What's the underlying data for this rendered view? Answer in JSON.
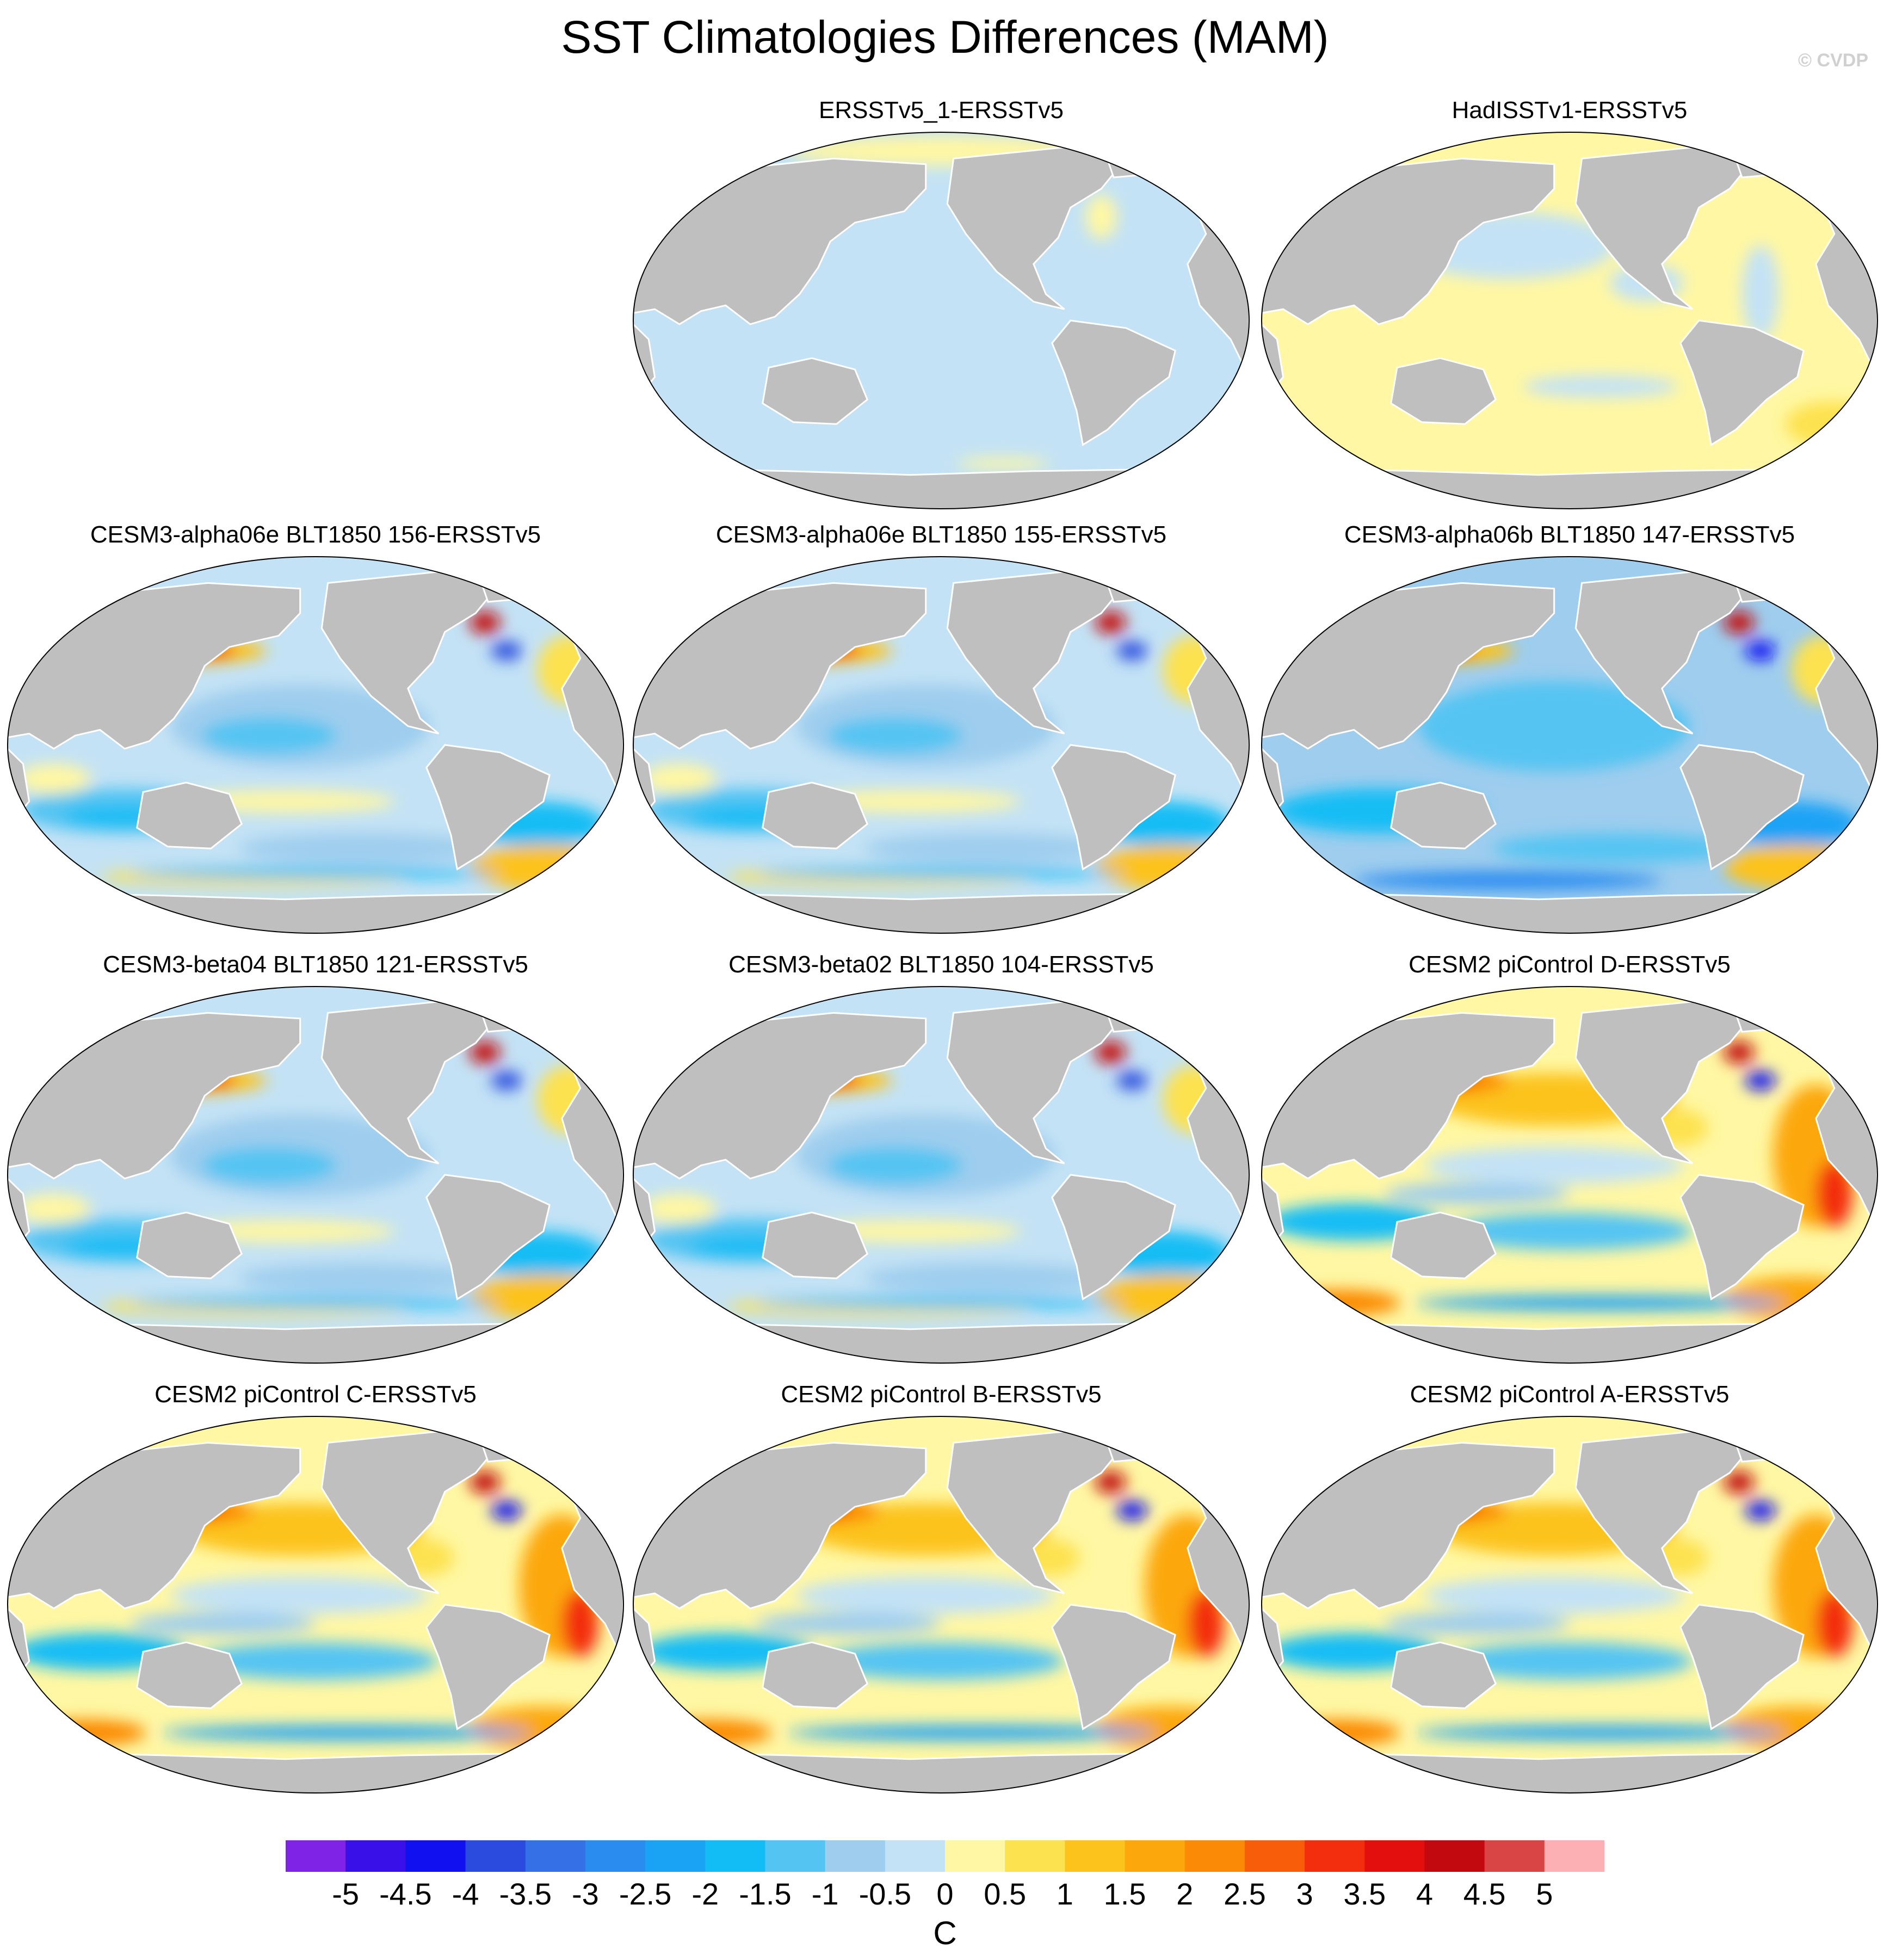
{
  "title": "SST Climatologies Differences (MAM)",
  "watermark": "© CVDP",
  "panels": [
    {
      "title": "ERSSTv5_1-ERSSTv5",
      "pattern": "uniform-cool"
    },
    {
      "title": "HadISSTv1-ERSSTv5",
      "pattern": "uniform-warm"
    },
    {
      "title": "CESM3-alpha06e BLT1850 156-ERSSTv5",
      "pattern": "cool-model"
    },
    {
      "title": "CESM3-alpha06e BLT1850 155-ERSSTv5",
      "pattern": "cool-model"
    },
    {
      "title": "CESM3-alpha06b BLT1850 147-ERSSTv5",
      "pattern": "cool-model-strong"
    },
    {
      "title": "CESM3-beta04 BLT1850 121-ERSSTv5",
      "pattern": "cool-model"
    },
    {
      "title": "CESM3-beta02 BLT1850 104-ERSSTv5",
      "pattern": "cool-model"
    },
    {
      "title": "CESM2 piControl D-ERSSTv5",
      "pattern": "warm-model"
    },
    {
      "title": "CESM2 piControl C-ERSSTv5",
      "pattern": "warm-model"
    },
    {
      "title": "CESM2 piControl B-ERSSTv5",
      "pattern": "warm-model"
    },
    {
      "title": "CESM2 piControl A-ERSSTv5",
      "pattern": "warm-model"
    }
  ],
  "colorbar": {
    "unit": "C",
    "tick_labels": [
      "-5",
      "-4.5",
      "-4",
      "-3.5",
      "-3",
      "-2.5",
      "-2",
      "-1.5",
      "-1",
      "-0.5",
      "0",
      "0.5",
      "1",
      "1.5",
      "2",
      "2.5",
      "3",
      "3.5",
      "4",
      "4.5",
      "5"
    ],
    "colors": [
      "#7f24e6",
      "#3a10e8",
      "#1010f0",
      "#2a4bdd",
      "#3570e6",
      "#2b8cf0",
      "#1aa3f5",
      "#12bdf5",
      "#54c4f2",
      "#9ecdee",
      "#c3e2f5",
      "#fff7a3",
      "#fde24f",
      "#fcc31c",
      "#fca80d",
      "#fb8a06",
      "#f85d0a",
      "#f32e0e",
      "#e30e0e",
      "#c1090f",
      "#d94545",
      "#fdb0b3"
    ]
  },
  "colors": {
    "land": "#bfbfbf",
    "land_edge": "#ffffff",
    "map_outline": "#000000"
  }
}
